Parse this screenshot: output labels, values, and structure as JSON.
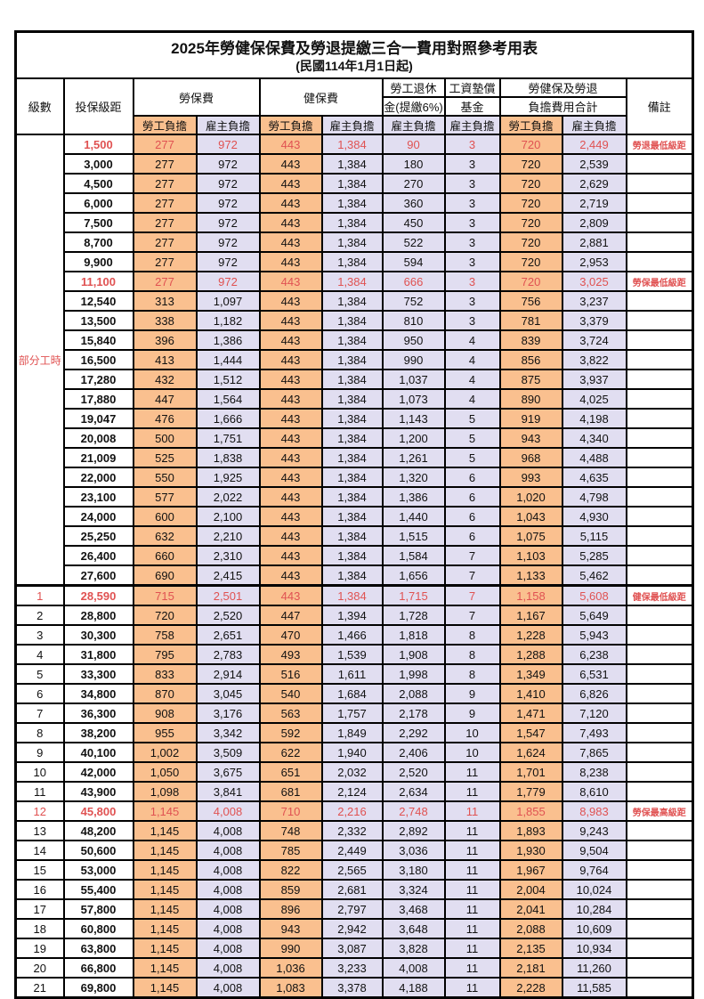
{
  "title": "2025年勞健保保費及勞退提繳三合一費用對照參考用表",
  "subtitle": "(民國114年1月1日起)",
  "header": {
    "level": "級數",
    "bracket": "投保級距",
    "labor_ins": "勞保費",
    "health_ins": "健保費",
    "pension_line1": "勞工退休",
    "pension_line2": "金(提繳6%)",
    "wage_fund_line1": "工資墊償",
    "wage_fund_line2": "基金",
    "total_line1": "勞健保及勞退",
    "total_line2": "負擔費用合計",
    "remark": "備註",
    "employee": "勞工負擔",
    "employer": "雇主負擔"
  },
  "part_time_label": "部分工時",
  "colors": {
    "employee_bg": "#FAC08F",
    "employer_bg": "#E1DEF1",
    "highlight_text": "#E05252",
    "border": "#000000"
  },
  "rows": [
    {
      "level": "",
      "bracket": "1,500",
      "values": [
        "277",
        "972",
        "443",
        "1,384",
        "90",
        "3",
        "720",
        "2,449"
      ],
      "remark": "勞退最低級距",
      "red": true
    },
    {
      "level": "",
      "bracket": "3,000",
      "values": [
        "277",
        "972",
        "443",
        "1,384",
        "180",
        "3",
        "720",
        "2,539"
      ],
      "remark": "",
      "red": false
    },
    {
      "level": "",
      "bracket": "4,500",
      "values": [
        "277",
        "972",
        "443",
        "1,384",
        "270",
        "3",
        "720",
        "2,629"
      ],
      "remark": "",
      "red": false
    },
    {
      "level": "",
      "bracket": "6,000",
      "values": [
        "277",
        "972",
        "443",
        "1,384",
        "360",
        "3",
        "720",
        "2,719"
      ],
      "remark": "",
      "red": false
    },
    {
      "level": "",
      "bracket": "7,500",
      "values": [
        "277",
        "972",
        "443",
        "1,384",
        "450",
        "3",
        "720",
        "2,809"
      ],
      "remark": "",
      "red": false
    },
    {
      "level": "",
      "bracket": "8,700",
      "values": [
        "277",
        "972",
        "443",
        "1,384",
        "522",
        "3",
        "720",
        "2,881"
      ],
      "remark": "",
      "red": false
    },
    {
      "level": "",
      "bracket": "9,900",
      "values": [
        "277",
        "972",
        "443",
        "1,384",
        "594",
        "3",
        "720",
        "2,953"
      ],
      "remark": "",
      "red": false
    },
    {
      "level": "",
      "bracket": "11,100",
      "values": [
        "277",
        "972",
        "443",
        "1,384",
        "666",
        "3",
        "720",
        "3,025"
      ],
      "remark": "勞保最低級距",
      "red": true
    },
    {
      "level": "",
      "bracket": "12,540",
      "values": [
        "313",
        "1,097",
        "443",
        "1,384",
        "752",
        "3",
        "756",
        "3,237"
      ],
      "remark": "",
      "red": false
    },
    {
      "level": "",
      "bracket": "13,500",
      "values": [
        "338",
        "1,182",
        "443",
        "1,384",
        "810",
        "3",
        "781",
        "3,379"
      ],
      "remark": "",
      "red": false
    },
    {
      "level": "",
      "bracket": "15,840",
      "values": [
        "396",
        "1,386",
        "443",
        "1,384",
        "950",
        "4",
        "839",
        "3,724"
      ],
      "remark": "",
      "red": false
    },
    {
      "level": "",
      "bracket": "16,500",
      "values": [
        "413",
        "1,444",
        "443",
        "1,384",
        "990",
        "4",
        "856",
        "3,822"
      ],
      "remark": "",
      "red": false
    },
    {
      "level": "",
      "bracket": "17,280",
      "values": [
        "432",
        "1,512",
        "443",
        "1,384",
        "1,037",
        "4",
        "875",
        "3,937"
      ],
      "remark": "",
      "red": false
    },
    {
      "level": "",
      "bracket": "17,880",
      "values": [
        "447",
        "1,564",
        "443",
        "1,384",
        "1,073",
        "4",
        "890",
        "4,025"
      ],
      "remark": "",
      "red": false
    },
    {
      "level": "",
      "bracket": "19,047",
      "values": [
        "476",
        "1,666",
        "443",
        "1,384",
        "1,143",
        "5",
        "919",
        "4,198"
      ],
      "remark": "",
      "red": false
    },
    {
      "level": "",
      "bracket": "20,008",
      "values": [
        "500",
        "1,751",
        "443",
        "1,384",
        "1,200",
        "5",
        "943",
        "4,340"
      ],
      "remark": "",
      "red": false
    },
    {
      "level": "",
      "bracket": "21,009",
      "values": [
        "525",
        "1,838",
        "443",
        "1,384",
        "1,261",
        "5",
        "968",
        "4,488"
      ],
      "remark": "",
      "red": false
    },
    {
      "level": "",
      "bracket": "22,000",
      "values": [
        "550",
        "1,925",
        "443",
        "1,384",
        "1,320",
        "6",
        "993",
        "4,635"
      ],
      "remark": "",
      "red": false
    },
    {
      "level": "",
      "bracket": "23,100",
      "values": [
        "577",
        "2,022",
        "443",
        "1,384",
        "1,386",
        "6",
        "1,020",
        "4,798"
      ],
      "remark": "",
      "red": false
    },
    {
      "level": "",
      "bracket": "24,000",
      "values": [
        "600",
        "2,100",
        "443",
        "1,384",
        "1,440",
        "6",
        "1,043",
        "4,930"
      ],
      "remark": "",
      "red": false
    },
    {
      "level": "",
      "bracket": "25,250",
      "values": [
        "632",
        "2,210",
        "443",
        "1,384",
        "1,515",
        "6",
        "1,075",
        "5,115"
      ],
      "remark": "",
      "red": false
    },
    {
      "level": "",
      "bracket": "26,400",
      "values": [
        "660",
        "2,310",
        "443",
        "1,384",
        "1,584",
        "7",
        "1,103",
        "5,285"
      ],
      "remark": "",
      "red": false
    },
    {
      "level": "",
      "bracket": "27,600",
      "values": [
        "690",
        "2,415",
        "443",
        "1,384",
        "1,656",
        "7",
        "1,133",
        "5,462"
      ],
      "remark": "",
      "red": false
    },
    {
      "level": "1",
      "bracket": "28,590",
      "values": [
        "715",
        "2,501",
        "443",
        "1,384",
        "1,715",
        "7",
        "1,158",
        "5,608"
      ],
      "remark": "健保最低級距",
      "red": true
    },
    {
      "level": "2",
      "bracket": "28,800",
      "values": [
        "720",
        "2,520",
        "447",
        "1,394",
        "1,728",
        "7",
        "1,167",
        "5,649"
      ],
      "remark": "",
      "red": false
    },
    {
      "level": "3",
      "bracket": "30,300",
      "values": [
        "758",
        "2,651",
        "470",
        "1,466",
        "1,818",
        "8",
        "1,228",
        "5,943"
      ],
      "remark": "",
      "red": false
    },
    {
      "level": "4",
      "bracket": "31,800",
      "values": [
        "795",
        "2,783",
        "493",
        "1,539",
        "1,908",
        "8",
        "1,288",
        "6,238"
      ],
      "remark": "",
      "red": false
    },
    {
      "level": "5",
      "bracket": "33,300",
      "values": [
        "833",
        "2,914",
        "516",
        "1,611",
        "1,998",
        "8",
        "1,349",
        "6,531"
      ],
      "remark": "",
      "red": false
    },
    {
      "level": "6",
      "bracket": "34,800",
      "values": [
        "870",
        "3,045",
        "540",
        "1,684",
        "2,088",
        "9",
        "1,410",
        "6,826"
      ],
      "remark": "",
      "red": false
    },
    {
      "level": "7",
      "bracket": "36,300",
      "values": [
        "908",
        "3,176",
        "563",
        "1,757",
        "2,178",
        "9",
        "1,471",
        "7,120"
      ],
      "remark": "",
      "red": false
    },
    {
      "level": "8",
      "bracket": "38,200",
      "values": [
        "955",
        "3,342",
        "592",
        "1,849",
        "2,292",
        "10",
        "1,547",
        "7,493"
      ],
      "remark": "",
      "red": false
    },
    {
      "level": "9",
      "bracket": "40,100",
      "values": [
        "1,002",
        "3,509",
        "622",
        "1,940",
        "2,406",
        "10",
        "1,624",
        "7,865"
      ],
      "remark": "",
      "red": false
    },
    {
      "level": "10",
      "bracket": "42,000",
      "values": [
        "1,050",
        "3,675",
        "651",
        "2,032",
        "2,520",
        "11",
        "1,701",
        "8,238"
      ],
      "remark": "",
      "red": false
    },
    {
      "level": "11",
      "bracket": "43,900",
      "values": [
        "1,098",
        "3,841",
        "681",
        "2,124",
        "2,634",
        "11",
        "1,779",
        "8,610"
      ],
      "remark": "",
      "red": false
    },
    {
      "level": "12",
      "bracket": "45,800",
      "values": [
        "1,145",
        "4,008",
        "710",
        "2,216",
        "2,748",
        "11",
        "1,855",
        "8,983"
      ],
      "remark": "勞保最高級距",
      "red": true
    },
    {
      "level": "13",
      "bracket": "48,200",
      "values": [
        "1,145",
        "4,008",
        "748",
        "2,332",
        "2,892",
        "11",
        "1,893",
        "9,243"
      ],
      "remark": "",
      "red": false
    },
    {
      "level": "14",
      "bracket": "50,600",
      "values": [
        "1,145",
        "4,008",
        "785",
        "2,449",
        "3,036",
        "11",
        "1,930",
        "9,504"
      ],
      "remark": "",
      "red": false
    },
    {
      "level": "15",
      "bracket": "53,000",
      "values": [
        "1,145",
        "4,008",
        "822",
        "2,565",
        "3,180",
        "11",
        "1,967",
        "9,764"
      ],
      "remark": "",
      "red": false
    },
    {
      "level": "16",
      "bracket": "55,400",
      "values": [
        "1,145",
        "4,008",
        "859",
        "2,681",
        "3,324",
        "11",
        "2,004",
        "10,024"
      ],
      "remark": "",
      "red": false
    },
    {
      "level": "17",
      "bracket": "57,800",
      "values": [
        "1,145",
        "4,008",
        "896",
        "2,797",
        "3,468",
        "11",
        "2,041",
        "10,284"
      ],
      "remark": "",
      "red": false
    },
    {
      "level": "18",
      "bracket": "60,800",
      "values": [
        "1,145",
        "4,008",
        "943",
        "2,942",
        "3,648",
        "11",
        "2,088",
        "10,609"
      ],
      "remark": "",
      "red": false
    },
    {
      "level": "19",
      "bracket": "63,800",
      "values": [
        "1,145",
        "4,008",
        "990",
        "3,087",
        "3,828",
        "11",
        "2,135",
        "10,934"
      ],
      "remark": "",
      "red": false
    },
    {
      "level": "20",
      "bracket": "66,800",
      "values": [
        "1,145",
        "4,008",
        "1,036",
        "3,233",
        "4,008",
        "11",
        "2,181",
        "11,260"
      ],
      "remark": "",
      "red": false
    },
    {
      "level": "21",
      "bracket": "69,800",
      "values": [
        "1,145",
        "4,008",
        "1,083",
        "3,378",
        "4,188",
        "11",
        "2,228",
        "11,585"
      ],
      "remark": "",
      "red": false
    }
  ]
}
